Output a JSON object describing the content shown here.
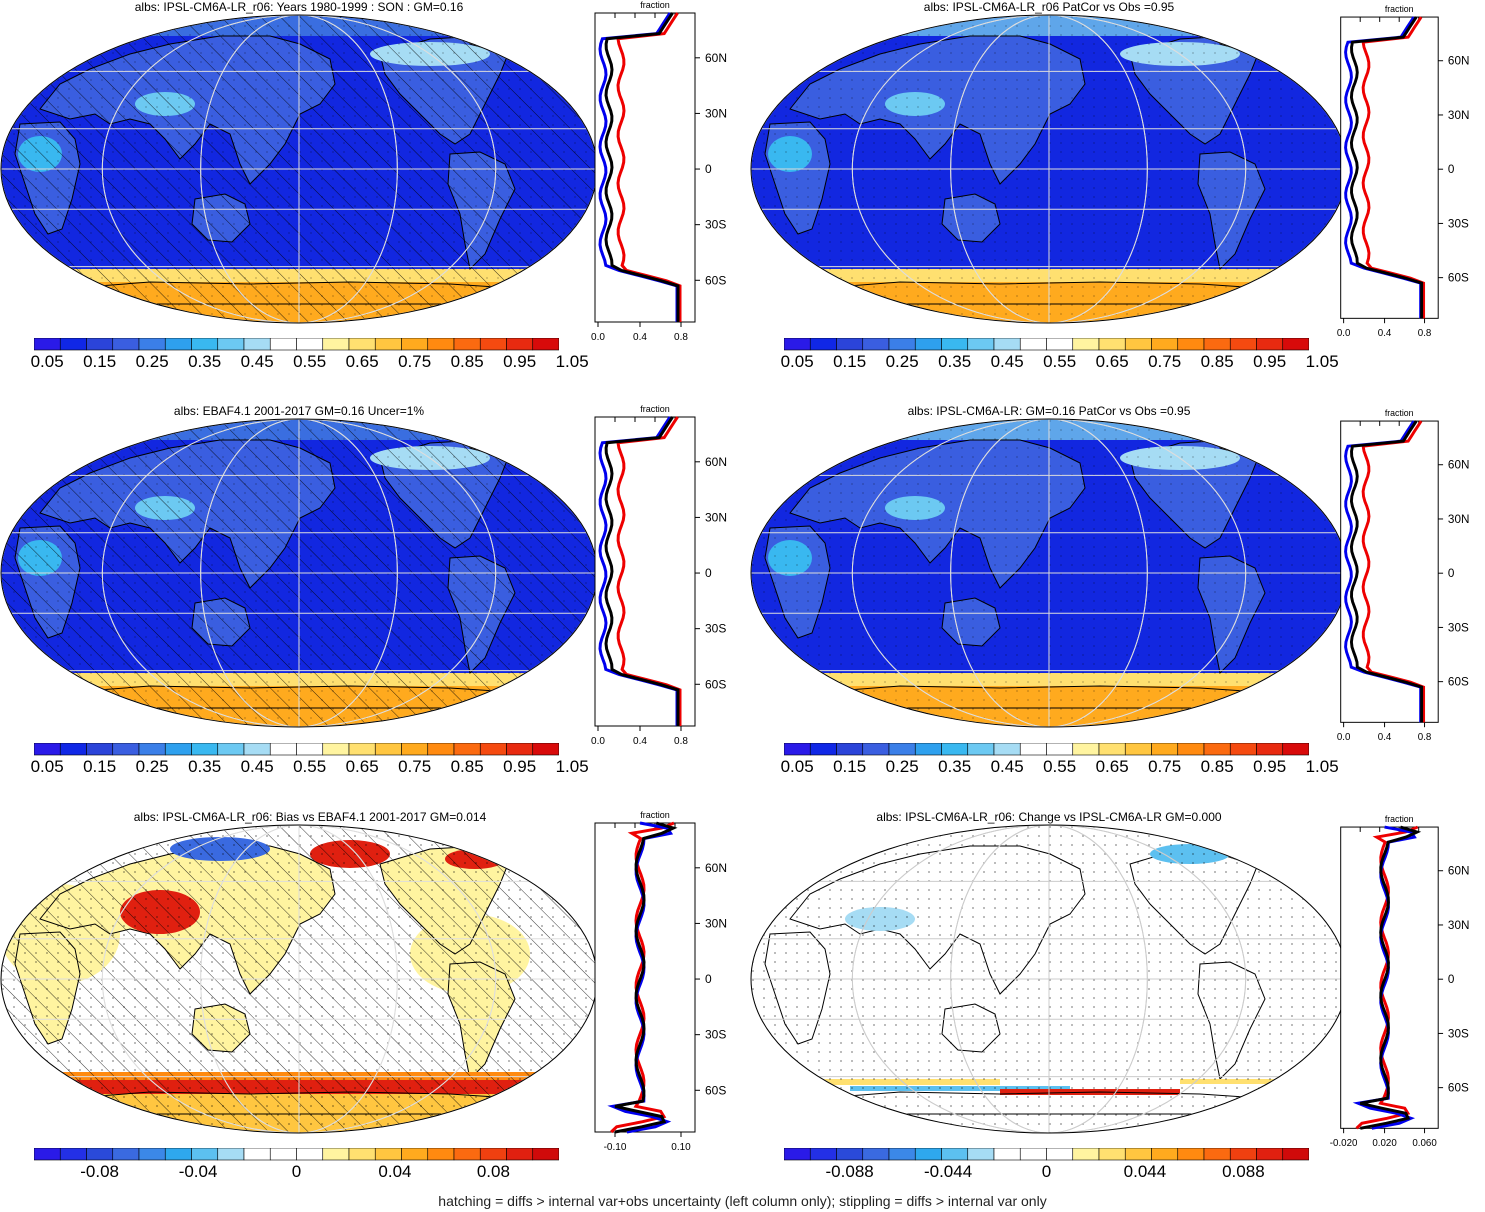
{
  "panels": [
    {
      "title": "albs: IPSL-CM6A-LR_r06: Years 1980-1999 : SON : GM=0.16",
      "kind": "abs",
      "hatch": true,
      "colorbar_labels": [
        "0.05",
        "0.15",
        "0.25",
        "0.35",
        "0.45",
        "0.55",
        "0.65",
        "0.75",
        "0.85",
        "0.95",
        "1.05"
      ],
      "zonal_ticks": [
        "0.0",
        "0.4",
        "0.8"
      ],
      "zonal_label": "fraction"
    },
    {
      "title": "albs: IPSL-CM6A-LR_r06 PatCor vs Obs =0.95",
      "kind": "abs",
      "hatch": false,
      "colorbar_labels": [
        "0.05",
        "0.15",
        "0.25",
        "0.35",
        "0.45",
        "0.55",
        "0.65",
        "0.75",
        "0.85",
        "0.95",
        "1.05"
      ],
      "zonal_ticks": [
        "0.0",
        "0.4",
        "0.8"
      ],
      "zonal_label": "fraction"
    },
    {
      "title": "albs: EBAF4.1 2001-2017 GM=0.16 Uncer=1%",
      "kind": "abs",
      "hatch": true,
      "colorbar_labels": [
        "0.05",
        "0.15",
        "0.25",
        "0.35",
        "0.45",
        "0.55",
        "0.65",
        "0.75",
        "0.85",
        "0.95",
        "1.05"
      ],
      "zonal_ticks": [
        "0.0",
        "0.4",
        "0.8"
      ],
      "zonal_label": "fraction"
    },
    {
      "title": "albs: IPSL-CM6A-LR: GM=0.16 PatCor vs Obs =0.95",
      "kind": "abs",
      "hatch": false,
      "colorbar_labels": [
        "0.05",
        "0.15",
        "0.25",
        "0.35",
        "0.45",
        "0.55",
        "0.65",
        "0.75",
        "0.85",
        "0.95",
        "1.05"
      ],
      "zonal_ticks": [
        "0.0",
        "0.4",
        "0.8"
      ],
      "zonal_label": "fraction"
    },
    {
      "title": "albs: IPSL-CM6A-LR_r06: Bias vs EBAF4.1 2001-2017  GM=0.014",
      "kind": "bias",
      "hatch": true,
      "colorbar_labels": [
        "-0.08",
        "-0.04",
        "0",
        "0.04",
        "0.08"
      ],
      "zonal_ticks": [
        "-0.10",
        "0.10"
      ],
      "zonal_label": "fraction"
    },
    {
      "title": "albs: IPSL-CM6A-LR_r06: Change vs IPSL-CM6A-LR GM=0.000",
      "kind": "change",
      "hatch": false,
      "colorbar_labels": [
        "-0.088",
        "-0.044",
        "0",
        "0.044",
        "0.088"
      ],
      "zonal_ticks": [
        "-0.020",
        "0.020",
        "0.060"
      ],
      "zonal_label": "fraction"
    }
  ],
  "lat_labels": [
    "60N",
    "30N",
    "0",
    "30S",
    "60S"
  ],
  "abs_colors": [
    "#2a1ae8",
    "#1027e6",
    "#2b44d9",
    "#3a5ee0",
    "#3b7fe8",
    "#2ea0ee",
    "#39b8f0",
    "#6cc9f2",
    "#a6dcf4",
    "#ffffff",
    "#ffffff",
    "#fff4a0",
    "#ffe070",
    "#ffc640",
    "#ffaa1e",
    "#ff8a10",
    "#fb6a10",
    "#f54a10",
    "#e82a10",
    "#d80a0a"
  ],
  "diff_colors": [
    "#2a1ae8",
    "#2330e6",
    "#2a4ad9",
    "#3a6ae0",
    "#3b88e8",
    "#2ea8ee",
    "#5cc0f0",
    "#a6dcf4",
    "#ffffff",
    "#ffffff",
    "#ffffff",
    "#fff4a0",
    "#ffe070",
    "#ffc640",
    "#ffaa1e",
    "#ff8a10",
    "#fb6a10",
    "#f04010",
    "#e02010",
    "#d00a0a"
  ],
  "footer": "hatching = diffs > internal var+obs uncertainty (left column only); stippling = diffs > internal var only"
}
